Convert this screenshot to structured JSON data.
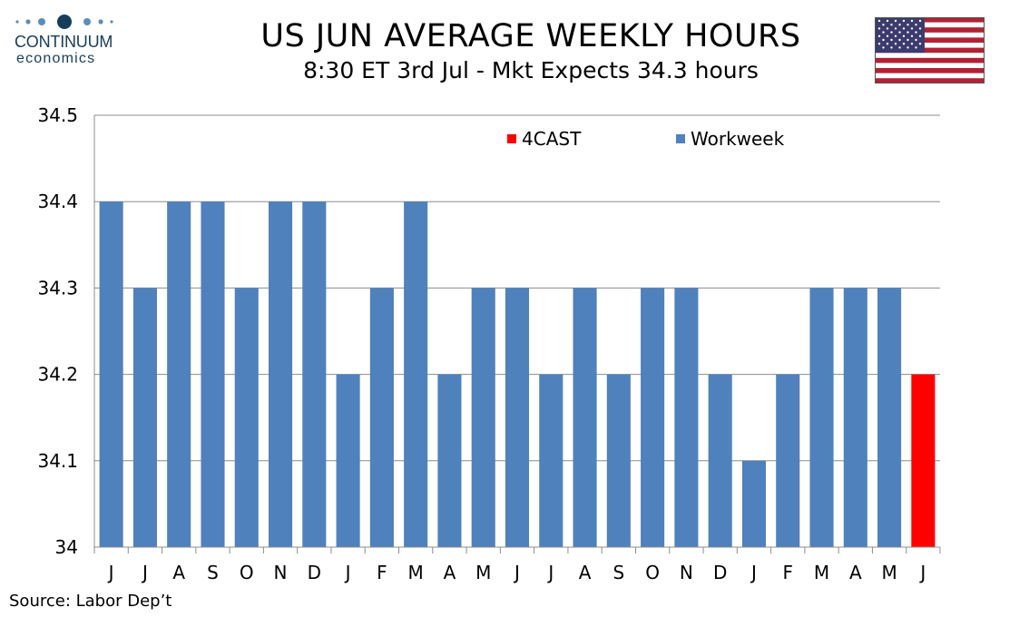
{
  "header": {
    "title": "US JUN AVERAGE WEEKLY HOURS",
    "subtitle": "8:30 ET 3rd Jul - Mkt Expects 34.3 hours"
  },
  "logo": {
    "name": "CONTINUUM",
    "sub": "economics"
  },
  "footer": {
    "source": "Source: Labor Dep’t"
  },
  "colors": {
    "workweek": "#4f81bd",
    "forecast": "#ff0000",
    "brand": "#173d5c"
  },
  "icons": {
    "flag": "us-flag-icon"
  },
  "chart_data": {
    "type": "bar",
    "categories": [
      "J",
      "J",
      "A",
      "S",
      "O",
      "N",
      "D",
      "J",
      "F",
      "M",
      "A",
      "M",
      "J",
      "J",
      "A",
      "S",
      "O",
      "N",
      "D",
      "J",
      "F",
      "M",
      "A",
      "M",
      "J"
    ],
    "series": [
      {
        "name": "Workweek",
        "color": "#4f81bd",
        "values": [
          34.4,
          34.3,
          34.4,
          34.4,
          34.3,
          34.4,
          34.4,
          34.2,
          34.3,
          34.4,
          34.2,
          34.3,
          34.3,
          34.2,
          34.3,
          34.2,
          34.3,
          34.3,
          34.2,
          34.1,
          34.2,
          34.3,
          34.3,
          34.3,
          null
        ]
      },
      {
        "name": "4CAST",
        "color": "#ff0000",
        "values": [
          null,
          null,
          null,
          null,
          null,
          null,
          null,
          null,
          null,
          null,
          null,
          null,
          null,
          null,
          null,
          null,
          null,
          null,
          null,
          null,
          null,
          null,
          null,
          null,
          34.2
        ]
      }
    ],
    "ylim": [
      34,
      34.5
    ],
    "yticks": [
      "34",
      "34.1",
      "34.2",
      "34.3",
      "34.4",
      "34.5"
    ],
    "grid": true,
    "legend": "top"
  }
}
